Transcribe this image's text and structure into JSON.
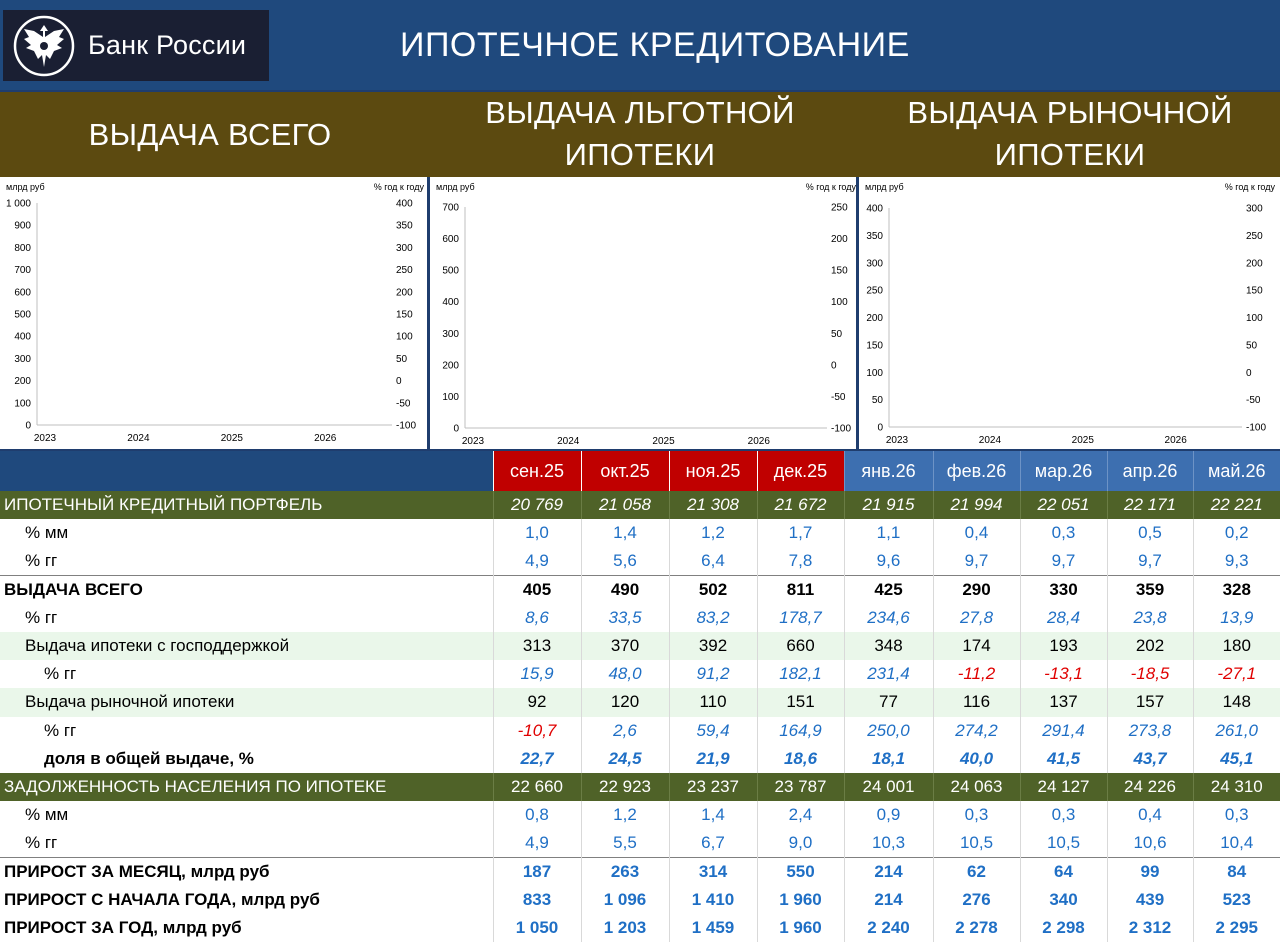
{
  "header": {
    "logo_text": "Банк России",
    "title": "ИПОТЕЧНОЕ КРЕДИТОВАНИЕ"
  },
  "bands": {
    "total": "ВЫДАЧА ВСЕГО",
    "preferential_l1": "ВЫДАЧА ЛЬГОТНОЙ",
    "preferential_l2": "ИПОТЕКИ",
    "market_l1": "ВЫДАЧА РЫНОЧНОЙ",
    "market_l2": "ИПОТЕКИ"
  },
  "colors": {
    "bar": "#1f6fc5",
    "line": "#c00000",
    "header_blue": "#1f497d",
    "section_green": "#4f6228",
    "band_brown": "#5c4a10"
  },
  "chart_data": [
    {
      "type": "bar",
      "ylabel": "млрд руб",
      "y2label": "% год к году",
      "ylim": [
        0,
        1000
      ],
      "y2lim": [
        -100,
        400
      ],
      "y_ticks": [
        0,
        100,
        200,
        300,
        400,
        500,
        600,
        700,
        800,
        900,
        1000
      ],
      "y_tick_labels": [
        "0",
        "100",
        "200",
        "300",
        "400",
        "500",
        "600",
        "700",
        "800",
        "900",
        "1 000"
      ],
      "y2_ticks": [
        -100,
        -50,
        0,
        50,
        100,
        150,
        200,
        250,
        300,
        350,
        400
      ],
      "year_labels": [
        "2023",
        "2024",
        "2025",
        "2026"
      ],
      "series": []
    },
    {
      "type": "bar",
      "ylabel": "млрд руб",
      "y2label": "% год к году",
      "ylim": [
        0,
        700
      ],
      "y2lim": [
        -100,
        250
      ],
      "y_ticks": [
        0,
        100,
        200,
        300,
        400,
        500,
        600,
        700
      ],
      "y2_ticks": [
        -100,
        -50,
        0,
        50,
        100,
        150,
        200,
        250
      ],
      "year_labels": [
        "2023",
        "2024",
        "2025",
        "2026"
      ],
      "series": []
    },
    {
      "type": "bar",
      "ylabel": "млрд руб",
      "y2label": "% год к году",
      "ylim": [
        0,
        400
      ],
      "y2lim": [
        -100,
        300
      ],
      "y_ticks": [
        0,
        50,
        100,
        150,
        200,
        250,
        300,
        350,
        400
      ],
      "y2_ticks": [
        -100,
        -50,
        0,
        50,
        100,
        150,
        200,
        250,
        300
      ],
      "year_labels": [
        "2023",
        "2024",
        "2025",
        "2026"
      ],
      "series": []
    }
  ],
  "table": {
    "months": [
      "сен.25",
      "окт.25",
      "ноя.25",
      "дек.25",
      "янв.26",
      "фев.26",
      "мар.26",
      "апр.26",
      "май.26"
    ],
    "rows": [
      {
        "label": "ИПОТЕЧНЫЙ КРЕДИТНЫЙ ПОРТФЕЛЬ",
        "style": "sec",
        "values": [
          "20 769",
          "21 058",
          "21 308",
          "21 672",
          "21 915",
          "21 994",
          "22 051",
          "22 171",
          "22 221"
        ]
      },
      {
        "label": "% мм",
        "style": "w ind1 blue",
        "values": [
          "1,0",
          "1,4",
          "1,2",
          "1,7",
          "1,1",
          "0,4",
          "0,3",
          "0,5",
          "0,2"
        ]
      },
      {
        "label": "% гг",
        "style": "w ind1 blue",
        "values": [
          "4,9",
          "5,6",
          "6,4",
          "7,8",
          "9,6",
          "9,7",
          "9,7",
          "9,7",
          "9,3"
        ]
      },
      {
        "label": "ВЫДАЧА ВСЕГО",
        "style": "w bold bt",
        "values": [
          "405",
          "490",
          "502",
          "811",
          "425",
          "290",
          "330",
          "359",
          "328"
        ]
      },
      {
        "label": "% гг",
        "style": "w ind1 blue it",
        "values": [
          "8,6",
          "33,5",
          "83,2",
          "178,7",
          "234,6",
          "27,8",
          "28,4",
          "23,8",
          "13,9"
        ]
      },
      {
        "label": "Выдача ипотеки с господдержкой",
        "style": "g ind1",
        "values": [
          "313",
          "370",
          "392",
          "660",
          "348",
          "174",
          "193",
          "202",
          "180"
        ]
      },
      {
        "label": "% гг",
        "style": "w ind2 it",
        "values": [
          "15,9",
          "48,0",
          "91,2",
          "182,1",
          "231,4",
          "-11,2",
          "-13,1",
          "-18,5",
          "-27,1"
        ]
      },
      {
        "label": "Выдача рыночной ипотеки",
        "style": "g ind1",
        "values": [
          "92",
          "120",
          "110",
          "151",
          "77",
          "116",
          "137",
          "157",
          "148"
        ]
      },
      {
        "label": "% гг",
        "style": "w ind2 it",
        "values": [
          "-10,7",
          "2,6",
          "59,4",
          "164,9",
          "250,0",
          "274,2",
          "291,4",
          "273,8",
          "261,0"
        ]
      },
      {
        "label": "доля в общей выдаче, %",
        "style": "w ind2 bold it",
        "values": [
          "22,7",
          "24,5",
          "21,9",
          "18,6",
          "18,1",
          "40,0",
          "41,5",
          "43,7",
          "45,1"
        ]
      },
      {
        "label": "ЗАДОЛЖЕННОСТЬ НАСЕЛЕНИЯ ПО ИПОТЕКЕ",
        "style": "sec sec2",
        "values": [
          "22 660",
          "22 923",
          "23 237",
          "23 787",
          "24 001",
          "24 063",
          "24 127",
          "24 226",
          "24 310"
        ]
      },
      {
        "label": "% мм",
        "style": "w ind1 blue",
        "values": [
          "0,8",
          "1,2",
          "1,4",
          "2,4",
          "0,9",
          "0,3",
          "0,3",
          "0,4",
          "0,3"
        ]
      },
      {
        "label": "% гг",
        "style": "w ind1 blue",
        "values": [
          "4,9",
          "5,5",
          "6,7",
          "9,0",
          "10,3",
          "10,5",
          "10,5",
          "10,6",
          "10,4"
        ]
      },
      {
        "label": "ПРИРОСТ ЗА МЕСЯЦ, млрд руб",
        "style": "w bold blue-vals bt",
        "values": [
          "187",
          "263",
          "314",
          "550",
          "214",
          "62",
          "64",
          "99",
          "84"
        ]
      },
      {
        "label": "ПРИРОСТ С НАЧАЛА ГОДА, млрд руб",
        "style": "w bold blue-vals",
        "values": [
          "833",
          "1 096",
          "1 410",
          "1 960",
          "214",
          "276",
          "340",
          "439",
          "523"
        ]
      },
      {
        "label": "ПРИРОСТ ЗА ГОД, млрд руб",
        "style": "w bold blue-vals",
        "values": [
          "1 050",
          "1 203",
          "1 459",
          "1 960",
          "2 240",
          "2 278",
          "2 298",
          "2 312",
          "2 295"
        ]
      }
    ]
  }
}
